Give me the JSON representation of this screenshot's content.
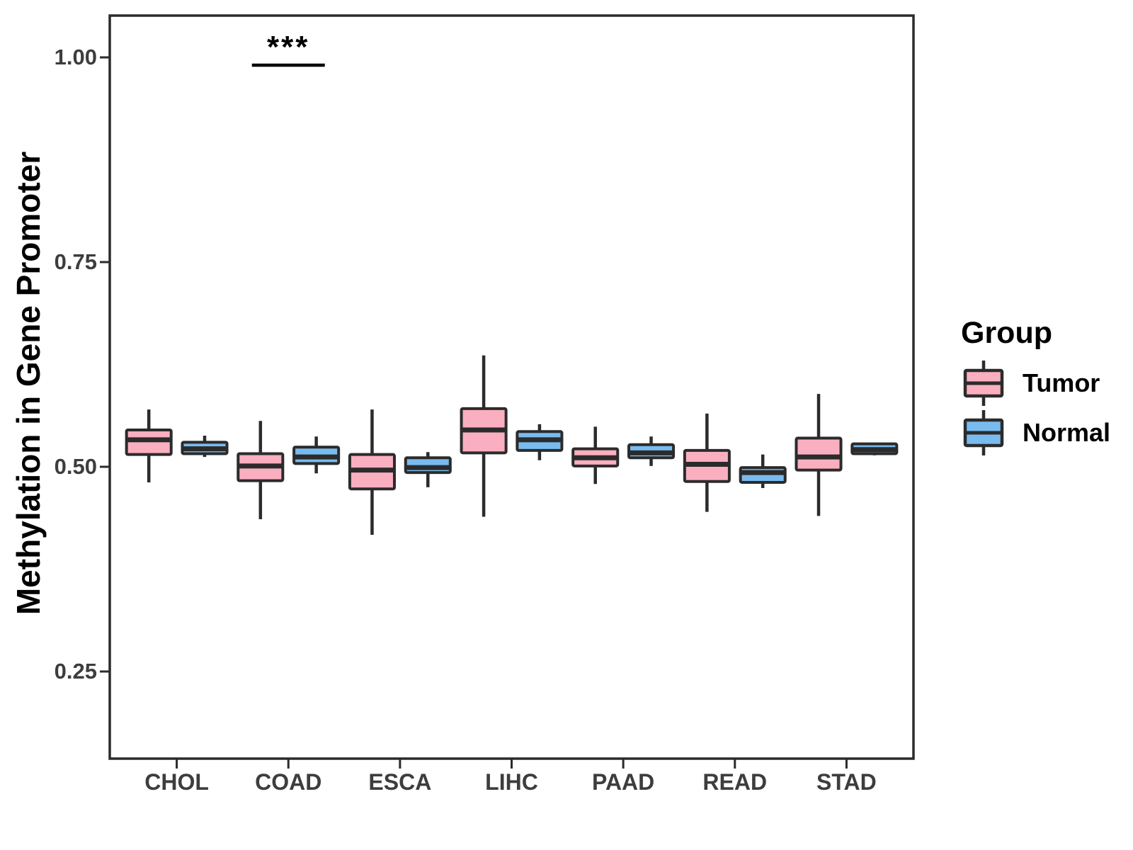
{
  "chart_data": {
    "type": "boxplot",
    "title": "",
    "xlabel": "",
    "ylabel": "Methylation in Gene Promoter",
    "categories": [
      "CHOL",
      "COAD",
      "ESCA",
      "LIHC",
      "PAAD",
      "READ",
      "STAD"
    ],
    "ytick_labels": [
      "1.00",
      "0.75",
      "0.50",
      "0.25"
    ],
    "ytick_values": [
      1.0,
      0.75,
      0.5,
      0.25
    ],
    "ylim": [
      0.144,
      1.051
    ],
    "grid": false,
    "legend": {
      "title": "Group",
      "position": "right"
    },
    "colors": {
      "tumor": "#FAAFC0",
      "normal": "#79BBEF",
      "box_border": "#2B2B2B",
      "tick_label": "#3D3D3D",
      "annotation": "#000000"
    },
    "series": [
      {
        "name": "Tumor",
        "color": "#FAAFC0",
        "boxes": [
          {
            "low": 0.481,
            "q1": 0.515,
            "med": 0.533,
            "q3": 0.545,
            "high": 0.57
          },
          {
            "low": 0.436,
            "q1": 0.483,
            "med": 0.501,
            "q3": 0.516,
            "high": 0.556
          },
          {
            "low": 0.417,
            "q1": 0.473,
            "med": 0.496,
            "q3": 0.515,
            "high": 0.57
          },
          {
            "low": 0.439,
            "q1": 0.517,
            "med": 0.545,
            "q3": 0.571,
            "high": 0.636
          },
          {
            "low": 0.479,
            "q1": 0.501,
            "med": 0.511,
            "q3": 0.522,
            "high": 0.549
          },
          {
            "low": 0.445,
            "q1": 0.482,
            "med": 0.503,
            "q3": 0.52,
            "high": 0.565
          },
          {
            "low": 0.44,
            "q1": 0.496,
            "med": 0.512,
            "q3": 0.535,
            "high": 0.589
          }
        ]
      },
      {
        "name": "Normal",
        "color": "#79BBEF",
        "boxes": [
          {
            "low": 0.512,
            "q1": 0.516,
            "med": 0.522,
            "q3": 0.53,
            "high": 0.538
          },
          {
            "low": 0.492,
            "q1": 0.504,
            "med": 0.512,
            "q3": 0.524,
            "high": 0.537
          },
          {
            "low": 0.475,
            "q1": 0.493,
            "med": 0.499,
            "q3": 0.511,
            "high": 0.518
          },
          {
            "low": 0.508,
            "q1": 0.52,
            "med": 0.533,
            "q3": 0.543,
            "high": 0.552
          },
          {
            "low": 0.501,
            "q1": 0.511,
            "med": 0.517,
            "q3": 0.527,
            "high": 0.537
          },
          {
            "low": 0.474,
            "q1": 0.481,
            "med": 0.493,
            "q3": 0.499,
            "high": 0.515
          },
          {
            "low": 0.514,
            "q1": 0.516,
            "med": 0.521,
            "q3": 0.528,
            "high": 0.529
          }
        ]
      }
    ],
    "significance": [
      {
        "category": "COAD",
        "label": "***"
      }
    ]
  }
}
